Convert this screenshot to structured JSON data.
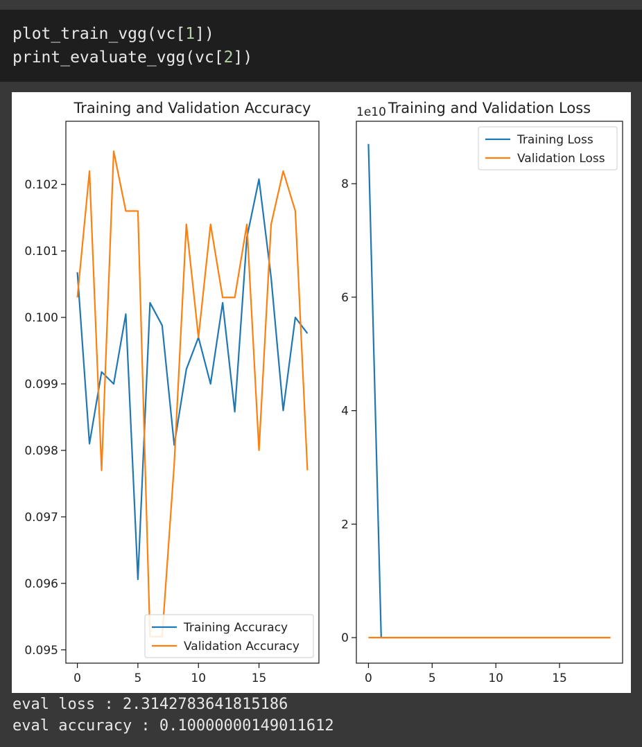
{
  "code": {
    "line1": {
      "prefix": "plot_train_vgg(vc[",
      "num": "1",
      "suffix": "])"
    },
    "line2": {
      "prefix": "print_evaluate_vgg(vc[",
      "num": "2",
      "suffix": "])"
    }
  },
  "output": {
    "eval_loss": "eval loss : 2.3142783641815186",
    "eval_accuracy": "eval accuracy : 0.10000000149011612"
  },
  "chart_data": [
    {
      "type": "line",
      "title": "Training and Validation Accuracy",
      "xlabel": "",
      "ylabel": "",
      "x": [
        0,
        1,
        2,
        3,
        4,
        5,
        6,
        7,
        8,
        9,
        10,
        11,
        12,
        13,
        14,
        15,
        16,
        17,
        18,
        19
      ],
      "series": [
        {
          "name": "Training Accuracy",
          "color": "#1f77b4",
          "values": [
            0.10068,
            0.0981,
            0.09918,
            0.099,
            0.10005,
            0.09606,
            0.10022,
            0.09988,
            0.09808,
            0.09922,
            0.0997,
            0.099,
            0.10022,
            0.09858,
            0.1012,
            0.10208,
            0.1006,
            0.0986,
            0.1,
            0.09976
          ]
        },
        {
          "name": "Validation Accuracy",
          "color": "#ff7f0e",
          "values": [
            0.1003,
            0.1022,
            0.0977,
            0.1025,
            0.1016,
            0.1016,
            0.0952,
            0.0952,
            0.0978,
            0.1014,
            0.0997,
            0.1014,
            0.1003,
            0.1003,
            0.1014,
            0.098,
            0.1014,
            0.1022,
            0.1016,
            0.0977
          ]
        }
      ],
      "xticks": [
        0,
        5,
        10,
        15
      ],
      "yticks": [
        0.095,
        0.096,
        0.097,
        0.098,
        0.099,
        0.1,
        0.101,
        0.102
      ],
      "ytick_labels": [
        "0.095",
        "0.096",
        "0.097",
        "0.098",
        "0.099",
        "0.100",
        "0.101",
        "0.102"
      ],
      "xlim": [
        -0.95,
        19.95
      ],
      "ylim": [
        0.0948,
        0.10295
      ],
      "legend_loc": "lower-right",
      "grid": false
    },
    {
      "type": "line",
      "title": "Training and Validation Loss",
      "xlabel": "",
      "ylabel": "",
      "offset_text": "1e10",
      "x": [
        0,
        1,
        2,
        3,
        4,
        5,
        6,
        7,
        8,
        9,
        10,
        11,
        12,
        13,
        14,
        15,
        16,
        17,
        18,
        19
      ],
      "series": [
        {
          "name": "Training Loss",
          "color": "#1f77b4",
          "values": [
            8.7,
            0,
            0,
            0,
            0,
            0,
            0,
            0,
            0,
            0,
            0,
            0,
            0,
            0,
            0,
            0,
            0,
            0,
            0,
            0
          ]
        },
        {
          "name": "Validation Loss",
          "color": "#ff7f0e",
          "values": [
            0,
            0,
            0,
            0,
            0,
            0,
            0,
            0,
            0,
            0,
            0,
            0,
            0,
            0,
            0,
            0,
            0,
            0,
            0,
            0
          ]
        }
      ],
      "xticks": [
        0,
        5,
        10,
        15
      ],
      "yticks": [
        0,
        2,
        4,
        6,
        8
      ],
      "ytick_labels": [
        "0",
        "2",
        "4",
        "6",
        "8"
      ],
      "xlim": [
        -0.95,
        19.95
      ],
      "ylim": [
        -0.45,
        9.1
      ],
      "legend_loc": "upper-right",
      "grid": false
    }
  ]
}
